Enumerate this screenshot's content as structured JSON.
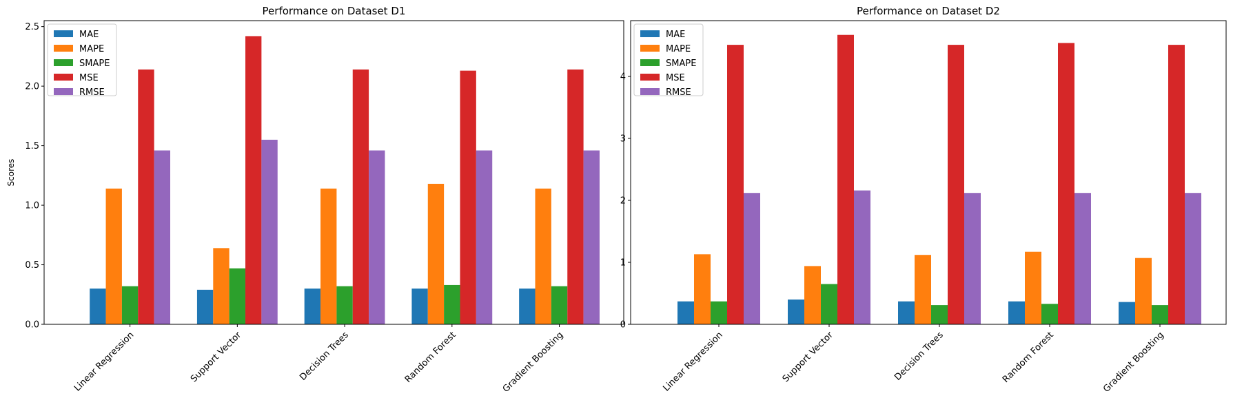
{
  "chart_data": [
    {
      "type": "bar",
      "title": "Performance on Dataset D1",
      "xlabel": "",
      "ylabel": "Scores",
      "ylim": [
        0,
        2.55
      ],
      "yticks": [
        0.0,
        0.5,
        1.0,
        1.5,
        2.0,
        2.5
      ],
      "ytick_labels": [
        "0.0",
        "0.5",
        "1.0",
        "1.5",
        "2.0",
        "2.5"
      ],
      "categories": [
        "Linear Regression",
        "Support Vector",
        "Decision Trees",
        "Random Forest",
        "Gradient Boosting"
      ],
      "legend_position": "top-left",
      "series": [
        {
          "name": "MAE",
          "color": "#1f77b4",
          "values": [
            0.3,
            0.29,
            0.3,
            0.3,
            0.3
          ]
        },
        {
          "name": "MAPE",
          "color": "#ff7f0e",
          "values": [
            1.14,
            0.64,
            1.14,
            1.18,
            1.14
          ]
        },
        {
          "name": "SMAPE",
          "color": "#2ca02c",
          "values": [
            0.32,
            0.47,
            0.32,
            0.33,
            0.32
          ]
        },
        {
          "name": "MSE",
          "color": "#d62728",
          "values": [
            2.14,
            2.42,
            2.14,
            2.13,
            2.14
          ]
        },
        {
          "name": "RMSE",
          "color": "#9467bd",
          "values": [
            1.46,
            1.55,
            1.46,
            1.46,
            1.46
          ]
        }
      ]
    },
    {
      "type": "bar",
      "title": "Performance on Dataset D2",
      "xlabel": "",
      "ylabel": "",
      "ylim": [
        0,
        4.9
      ],
      "yticks": [
        0,
        1,
        2,
        3,
        4
      ],
      "ytick_labels": [
        "0",
        "1",
        "2",
        "3",
        "4"
      ],
      "categories": [
        "Linear Regression",
        "Support Vector",
        "Decision Trees",
        "Random Forest",
        "Gradient Boosting"
      ],
      "legend_position": "top-left",
      "series": [
        {
          "name": "MAE",
          "color": "#1f77b4",
          "values": [
            0.37,
            0.4,
            0.37,
            0.37,
            0.36
          ]
        },
        {
          "name": "MAPE",
          "color": "#ff7f0e",
          "values": [
            1.13,
            0.94,
            1.12,
            1.17,
            1.07
          ]
        },
        {
          "name": "SMAPE",
          "color": "#2ca02c",
          "values": [
            0.37,
            0.65,
            0.31,
            0.33,
            0.31
          ]
        },
        {
          "name": "MSE",
          "color": "#d62728",
          "values": [
            4.51,
            4.67,
            4.51,
            4.54,
            4.51
          ]
        },
        {
          "name": "RMSE",
          "color": "#9467bd",
          "values": [
            2.12,
            2.16,
            2.12,
            2.12,
            2.12
          ]
        }
      ]
    }
  ]
}
